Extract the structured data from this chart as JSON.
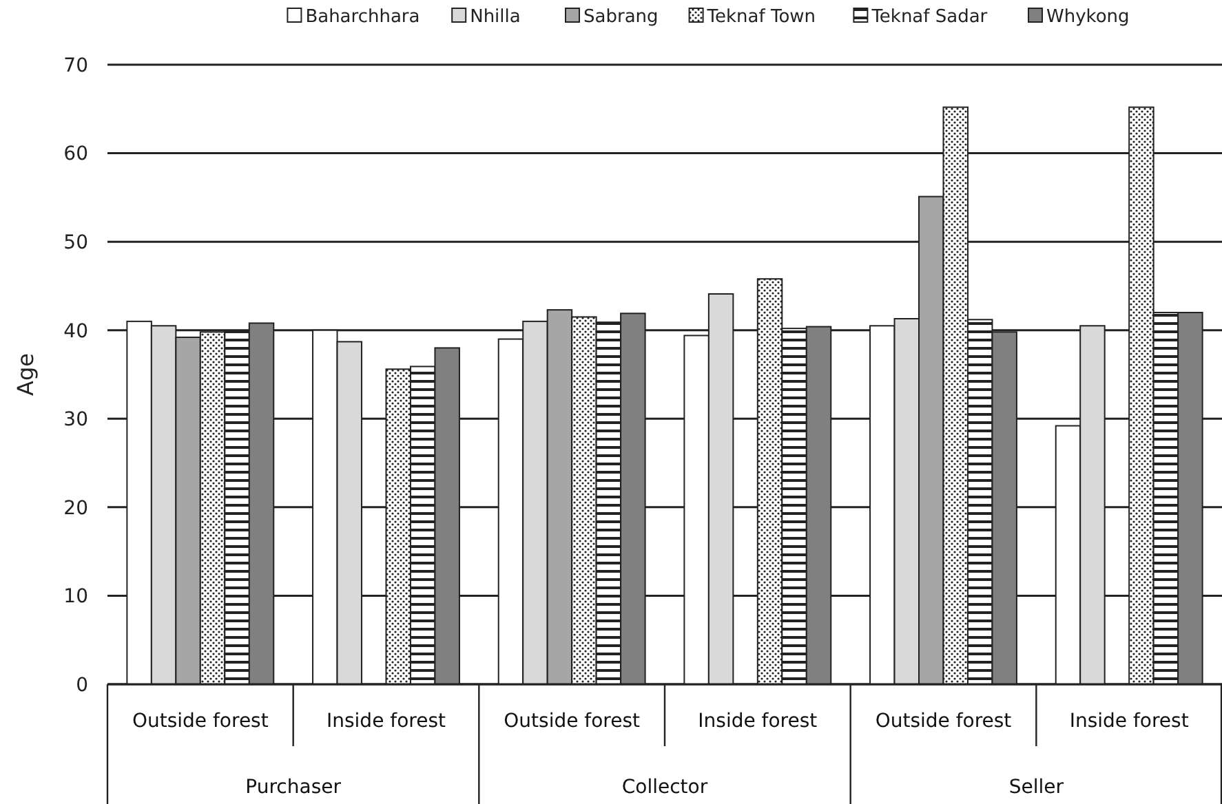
{
  "chart_data": {
    "type": "bar",
    "ylabel": "Age",
    "categories": [
      "Outside forest",
      "Inside forest",
      "Outside forest",
      "Inside forest",
      "Outside forest",
      "Inside forest"
    ],
    "annotations": [
      "Purchaser",
      "Collector",
      "Seller"
    ],
    "series": [
      {
        "name": "Baharchhara",
        "color": "#ffffff",
        "values": [
          41.0,
          40.0,
          39.0,
          39.4,
          40.5,
          29.2
        ]
      },
      {
        "name": "Nhilla",
        "color": "#d9d9d9",
        "values": [
          40.5,
          38.7,
          41.0,
          44.1,
          41.3,
          40.5
        ]
      },
      {
        "name": "Sabrang",
        "color": "#a6a6a6",
        "values": [
          39.2,
          null,
          42.3,
          null,
          55.1,
          null
        ]
      },
      {
        "name": "Teknaf Town",
        "color": "#222222",
        "values": [
          39.8,
          35.6,
          41.5,
          45.8,
          65.2,
          65.2
        ]
      },
      {
        "name": "Teknaf Sadar",
        "color": "#222222",
        "values": [
          39.9,
          35.9,
          40.9,
          40.2,
          41.2,
          42.0
        ]
      },
      {
        "name": "Whykong",
        "color": "#808080",
        "values": [
          40.8,
          38.0,
          41.9,
          40.4,
          39.8,
          42.0
        ]
      }
    ],
    "ylim": [
      0,
      70
    ],
    "yticks": [
      0,
      10,
      20,
      30,
      40,
      50,
      60,
      70
    ],
    "grid": "y",
    "legend": "top"
  }
}
